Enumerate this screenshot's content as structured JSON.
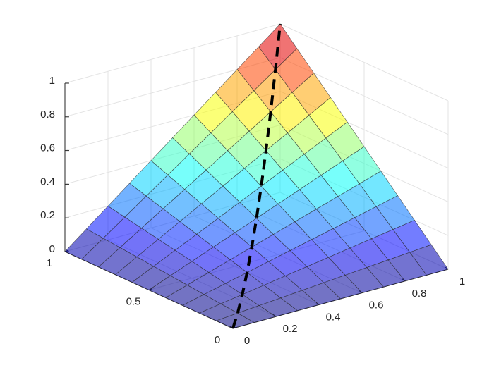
{
  "chart_data": {
    "type": "surface",
    "x": [
      0,
      0.1,
      0.2,
      0.3,
      0.4,
      0.5,
      0.6,
      0.7,
      0.8,
      0.9,
      1
    ],
    "y": [
      0,
      0.1,
      0.2,
      0.3,
      0.4,
      0.5,
      0.6,
      0.7,
      0.8,
      0.9,
      1
    ],
    "z": [
      [
        0,
        0,
        0,
        0,
        0,
        0,
        0,
        0,
        0,
        0,
        0
      ],
      [
        0,
        0.01,
        0.02,
        0.03,
        0.04,
        0.05,
        0.06,
        0.07,
        0.08,
        0.09,
        0.1
      ],
      [
        0,
        0.02,
        0.04,
        0.06,
        0.08,
        0.1,
        0.12,
        0.14,
        0.16,
        0.18,
        0.2
      ],
      [
        0,
        0.03,
        0.06,
        0.09,
        0.12,
        0.15,
        0.18,
        0.21,
        0.24,
        0.27,
        0.3
      ],
      [
        0,
        0.04,
        0.08,
        0.12,
        0.16,
        0.2,
        0.24,
        0.28,
        0.32,
        0.36,
        0.4
      ],
      [
        0,
        0.05,
        0.1,
        0.15,
        0.2,
        0.25,
        0.3,
        0.35,
        0.4,
        0.45,
        0.5
      ],
      [
        0,
        0.06,
        0.12,
        0.18,
        0.24,
        0.3,
        0.36,
        0.42,
        0.48,
        0.54,
        0.6
      ],
      [
        0,
        0.07,
        0.14,
        0.21,
        0.28,
        0.35,
        0.42,
        0.49,
        0.56,
        0.63,
        0.7
      ],
      [
        0,
        0.08,
        0.16,
        0.24,
        0.32,
        0.4,
        0.48,
        0.56,
        0.64,
        0.72,
        0.8
      ],
      [
        0,
        0.09,
        0.18,
        0.27,
        0.36,
        0.45,
        0.54,
        0.63,
        0.72,
        0.81,
        0.9
      ],
      [
        0,
        0.1,
        0.2,
        0.3,
        0.4,
        0.5,
        0.6,
        0.7,
        0.8,
        0.9,
        1
      ]
    ],
    "colormap": "jet",
    "face_alpha": 0.55,
    "line": {
      "x": [
        0,
        0.1,
        0.2,
        0.3,
        0.4,
        0.5,
        0.6,
        0.7,
        0.8,
        0.9,
        1
      ],
      "y": [
        0,
        0.1,
        0.2,
        0.3,
        0.4,
        0.5,
        0.6,
        0.7,
        0.8,
        0.9,
        1
      ],
      "z": [
        0,
        0.01,
        0.04,
        0.09,
        0.16,
        0.25,
        0.36,
        0.49,
        0.64,
        0.81,
        1
      ],
      "color": "#000000"
    },
    "xlim": [
      0,
      1
    ],
    "ylim": [
      0,
      1
    ],
    "zlim": [
      0,
      1
    ],
    "xticks": [
      0,
      0.2,
      0.4,
      0.6,
      0.8,
      1
    ],
    "yticks": [
      0,
      0.5,
      1
    ],
    "zticks": [
      0,
      0.2,
      0.4,
      0.6,
      0.8,
      1
    ],
    "grid": true
  }
}
